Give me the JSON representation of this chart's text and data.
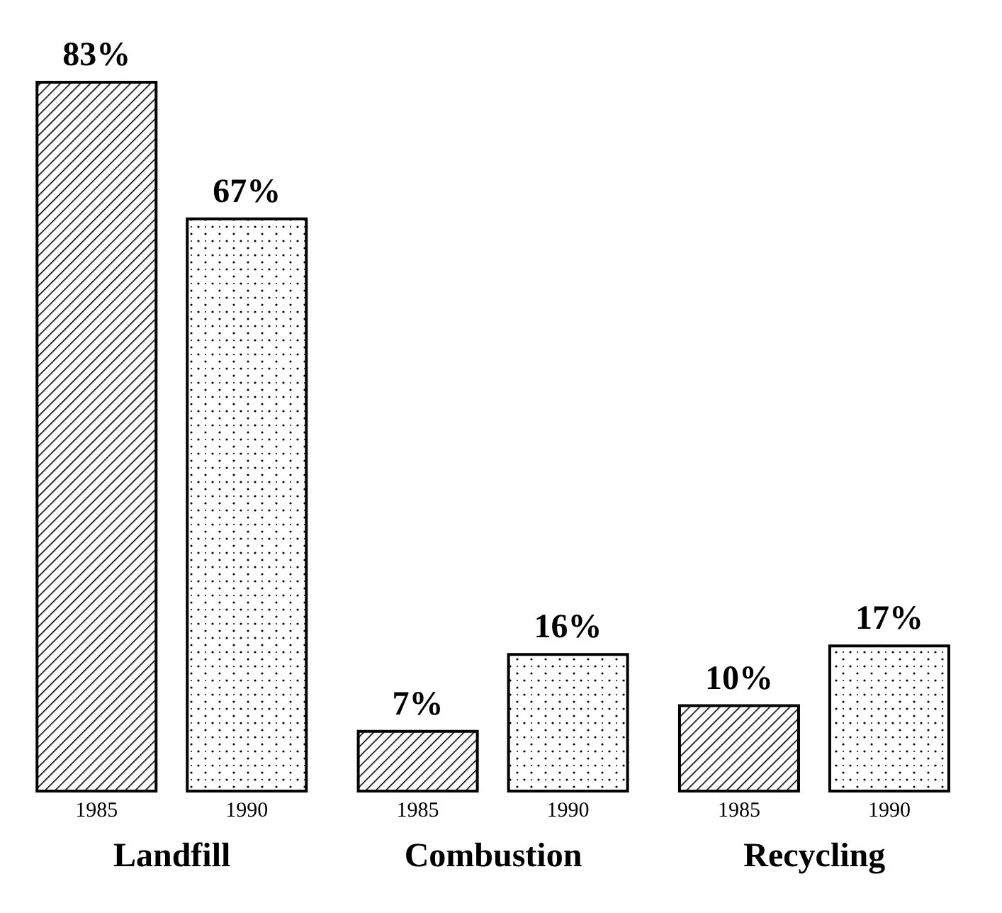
{
  "chart_data": {
    "type": "bar",
    "categories": [
      "Landfill",
      "Combustion",
      "Recycling"
    ],
    "series": [
      {
        "name": "1985",
        "color": "#000000",
        "values": [
          83,
          7,
          10
        ],
        "value_labels": [
          "83%",
          "7%",
          "10%"
        ]
      },
      {
        "name": "1990",
        "color": "#000000",
        "values": [
          67,
          16,
          17
        ],
        "value_labels": [
          "67%",
          "16%",
          "17%"
        ]
      }
    ],
    "grid": false,
    "legend": false
  }
}
